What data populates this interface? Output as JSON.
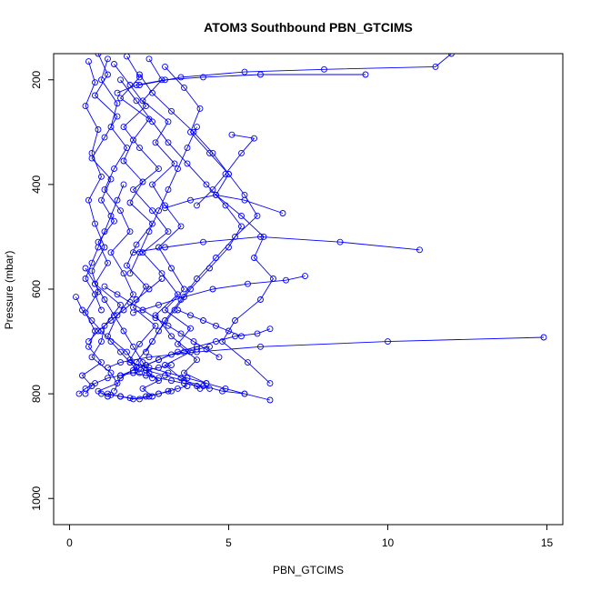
{
  "chart_data": {
    "type": "scatter",
    "title": "ATOM3 Southbound PBN_GTCIMS",
    "xlabel": "PBN_GTCIMS",
    "ylabel": "Pressure (mbar)",
    "xlim": [
      -0.5,
      15.5
    ],
    "ylim": [
      1050,
      150
    ],
    "y_reversed": true,
    "x_ticks": [
      0,
      5,
      10,
      15
    ],
    "y_ticks": [
      200,
      400,
      600,
      800,
      1000
    ],
    "grid": false,
    "legend": "none",
    "color": "#0000FF",
    "marker": "open-circle",
    "series": [
      {
        "x": [
          0.9,
          1.2,
          0.8,
          1.5,
          1.1,
          0.7,
          1.3,
          1.0,
          1.4,
          0.9,
          1.2,
          0.8,
          1.6,
          1.1,
          1.0,
          0.7,
          1.3,
          1.5,
          0.9,
          1.2
        ],
        "y": [
          150,
          190,
          230,
          270,
          310,
          350,
          390,
          430,
          470,
          510,
          550,
          590,
          630,
          670,
          700,
          730,
          760,
          780,
          795,
          805
        ]
      },
      {
        "x": [
          1.8,
          2.2,
          1.6,
          2.5,
          2.0,
          1.7,
          2.3,
          1.9,
          2.6,
          2.1,
          1.8,
          2.4,
          2.0,
          2.7,
          2.2,
          1.9,
          2.5,
          2.8,
          2.3,
          2.6
        ],
        "y": [
          155,
          195,
          235,
          275,
          315,
          355,
          395,
          435,
          475,
          515,
          555,
          595,
          635,
          670,
          705,
          735,
          760,
          775,
          790,
          805
        ]
      },
      {
        "x": [
          1.2,
          1.0,
          1.5,
          1.3,
          1.8,
          1.4,
          1.1,
          1.6,
          1.9,
          1.3,
          1.7,
          2.0,
          1.5,
          1.2,
          1.8,
          2.1,
          1.6,
          1.4
        ],
        "y": [
          160,
          200,
          245,
          290,
          330,
          370,
          410,
          450,
          490,
          530,
          570,
          610,
          650,
          690,
          720,
          750,
          770,
          795
        ]
      },
      {
        "x": [
          2.5,
          2.9,
          2.3,
          3.1,
          2.7,
          3.3,
          2.6,
          3.0,
          3.5,
          2.8,
          3.2,
          3.6,
          3.0,
          3.8,
          3.4,
          4.0,
          3.6,
          4.3
        ],
        "y": [
          160,
          200,
          240,
          280,
          320,
          360,
          400,
          440,
          480,
          520,
          560,
          600,
          640,
          675,
          705,
          735,
          760,
          780
        ]
      },
      {
        "x": [
          0.6,
          0.8,
          0.5,
          0.9,
          0.7,
          1.0,
          0.6,
          0.8,
          1.1,
          0.7,
          0.9,
          0.5,
          0.8,
          0.6,
          1.0,
          0.4,
          0.7,
          0.5
        ],
        "y": [
          165,
          205,
          250,
          295,
          340,
          385,
          430,
          475,
          520,
          565,
          605,
          645,
          680,
          710,
          740,
          765,
          785,
          800
        ]
      },
      {
        "x": [
          1.4,
          1.9,
          2.4,
          1.7,
          2.2,
          2.8,
          2.0,
          2.6,
          3.1,
          2.3,
          2.9,
          3.4,
          2.7,
          3.2,
          3.8,
          3.0,
          3.5,
          4.1
        ],
        "y": [
          170,
          210,
          250,
          290,
          330,
          370,
          410,
          450,
          490,
          530,
          570,
          610,
          650,
          690,
          720,
          745,
          770,
          790
        ]
      },
      {
        "x": [
          3.0,
          3.6,
          4.1,
          3.8,
          4.4,
          5.0,
          4.6,
          5.4,
          6.1,
          5.8,
          6.4,
          6.0,
          5.2,
          4.8,
          5.6,
          6.3
        ],
        "y": [
          175,
          215,
          255,
          300,
          340,
          380,
          420,
          460,
          500,
          540,
          580,
          620,
          660,
          700,
          740,
          780
        ]
      },
      {
        "x": [
          2.2,
          2.6,
          3.2,
          3.9,
          4.5,
          5.0,
          5.5,
          5.9,
          5.2,
          4.6,
          4.0,
          3.5,
          3.0,
          2.6,
          2.1
        ],
        "y": [
          190,
          225,
          260,
          300,
          340,
          380,
          420,
          460,
          500,
          540,
          580,
          620,
          660,
          700,
          740
        ]
      },
      {
        "x": [
          1.6,
          2.1,
          2.6,
          3.1,
          3.7,
          4.3,
          4.9,
          5.4,
          5.0,
          4.4,
          3.8,
          3.3,
          2.8,
          2.4
        ],
        "y": [
          200,
          240,
          280,
          320,
          360,
          400,
          440,
          480,
          520,
          560,
          600,
          640,
          680,
          720
        ]
      },
      {
        "x": [
          9.3,
          6.0,
          4.2,
          3.0,
          2.1,
          1.5
        ],
        "y": [
          190,
          190,
          195,
          200,
          210,
          225
        ]
      },
      {
        "x": [
          12.0,
          11.5,
          8.0,
          5.5,
          3.5,
          2.2
        ],
        "y": [
          150,
          175,
          180,
          185,
          195,
          210
        ]
      },
      {
        "x": [
          5.1,
          5.8,
          5.4,
          4.9,
          4.5,
          4.0
        ],
        "y": [
          305,
          312,
          340,
          380,
          410,
          440
        ]
      },
      {
        "x": [
          6.7,
          5.5,
          4.6,
          3.8,
          3.0
        ],
        "y": [
          455,
          430,
          420,
          430,
          445
        ]
      },
      {
        "x": [
          11.0,
          8.5,
          6.0,
          4.2,
          3.0,
          2.0
        ],
        "y": [
          525,
          510,
          500,
          510,
          520,
          530
        ]
      },
      {
        "x": [
          7.4,
          6.8,
          5.6,
          4.5,
          3.6,
          2.8,
          2.0
        ],
        "y": [
          575,
          583,
          590,
          600,
          615,
          630,
          645
        ]
      },
      {
        "x": [
          14.9,
          10.0,
          6.0,
          4.0,
          2.5,
          1.6,
          1.2
        ],
        "y": [
          692,
          700,
          710,
          720,
          730,
          740,
          750
        ]
      },
      {
        "x": [
          6.3,
          5.9,
          5.2,
          4.6,
          4.0,
          3.4,
          2.8,
          2.2
        ],
        "y": [
          676,
          685,
          690,
          700,
          710,
          720,
          735,
          750
        ]
      },
      {
        "x": [
          6.3,
          5.5,
          4.9,
          4.3,
          3.7,
          3.1,
          2.5,
          1.9
        ],
        "y": [
          812,
          800,
          790,
          780,
          770,
          760,
          750,
          740
        ]
      },
      {
        "x": [
          5.5,
          4.8,
          4.2,
          3.6,
          3.0,
          2.4
        ],
        "y": [
          800,
          795,
          785,
          775,
          765,
          755
        ]
      },
      {
        "x": [
          0.3,
          0.5,
          0.8,
          1.2,
          1.6,
          2.0,
          2.4,
          2.8,
          3.2
        ],
        "y": [
          800,
          790,
          780,
          770,
          765,
          760,
          755,
          750,
          745
        ]
      },
      {
        "x": [
          1.0,
          1.3,
          1.6,
          1.9,
          2.2,
          2.5,
          2.8,
          3.1,
          3.4,
          3.7
        ],
        "y": [
          800,
          802,
          805,
          808,
          810,
          805,
          800,
          795,
          790,
          785
        ]
      },
      {
        "x": [
          4.4,
          4.0,
          3.6,
          3.2,
          2.8,
          2.4,
          2.0,
          1.6
        ],
        "y": [
          710,
          715,
          720,
          725,
          735,
          745,
          755,
          765
        ]
      },
      {
        "x": [
          0.2,
          0.4,
          0.7,
          1.0,
          1.3,
          1.6,
          1.9,
          2.2
        ],
        "y": [
          615,
          640,
          660,
          680,
          700,
          720,
          740,
          760
        ]
      },
      {
        "x": [
          0.5,
          0.8,
          1.1,
          1.4,
          1.7,
          2.0,
          2.3,
          2.6
        ],
        "y": [
          560,
          590,
          620,
          650,
          680,
          710,
          740,
          770
        ]
      },
      {
        "x": [
          4.0,
          3.7,
          3.4,
          3.1,
          2.8,
          2.5,
          2.2,
          1.9
        ],
        "y": [
          290,
          330,
          370,
          410,
          450,
          490,
          530,
          570
        ]
      },
      {
        "x": [
          1.1,
          1.5,
          1.9,
          2.3,
          2.7,
          3.1,
          3.5,
          3.9,
          4.3,
          4.7
        ],
        "y": [
          595,
          610,
          625,
          640,
          655,
          670,
          685,
          700,
          715,
          730
        ]
      },
      {
        "x": [
          3.4,
          3.8,
          4.2,
          4.6,
          5.0,
          5.4
        ],
        "y": [
          640,
          650,
          660,
          670,
          680,
          690
        ]
      },
      {
        "x": [
          2.9,
          2.5,
          2.1,
          1.7,
          1.3,
          0.9,
          0.6
        ],
        "y": [
          580,
          600,
          620,
          640,
          660,
          680,
          700
        ]
      },
      {
        "x": [
          1.7,
          1.5,
          1.3,
          1.1,
          0.9,
          0.7,
          0.5,
          0.8,
          1.0
        ],
        "y": [
          400,
          430,
          460,
          490,
          520,
          550,
          580,
          610,
          640
        ]
      },
      {
        "x": [
          2.0,
          2.4,
          2.8,
          3.2,
          3.6,
          4.0,
          4.4
        ],
        "y": [
          760,
          765,
          770,
          775,
          780,
          785,
          790
        ]
      },
      {
        "x": [
          1.2,
          1.6,
          2.0,
          2.4,
          2.8,
          3.2
        ],
        "y": [
          800,
          805,
          810,
          805,
          800,
          795
        ]
      }
    ]
  }
}
